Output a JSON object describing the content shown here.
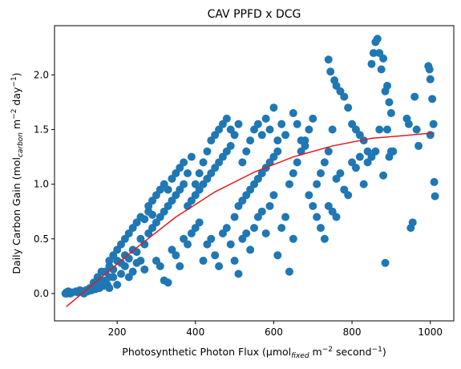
{
  "chart_data": {
    "type": "scatter",
    "title": "CAV PPFD x DCG",
    "xlabel": {
      "pre": "Photosynthetic Photon Flux (µmol",
      "sub": "fixed",
      "mid": " m",
      "sup1": "−2",
      "mid2": " second",
      "sup2": "−1",
      "post": ")"
    },
    "ylabel": {
      "pre": "Daily Carbon Gain (mol",
      "sub": "carbon",
      "mid": " m",
      "sup1": "−2",
      "mid2": " day",
      "sup2": "−1",
      "post": ")"
    },
    "xlim": [
      40,
      1060
    ],
    "ylim": [
      -0.25,
      2.45
    ],
    "xticks": [
      200,
      400,
      600,
      800,
      1000
    ],
    "yticks": [
      0.0,
      0.5,
      1.0,
      1.5,
      2.0
    ],
    "ytick_labels": [
      "0.0",
      "0.5",
      "1.0",
      "1.5",
      "2.0"
    ],
    "grid": false,
    "point_color": "#1f77b4",
    "fit_color": "#e41a1c",
    "fit_line": {
      "x": [
        70,
        150,
        250,
        350,
        450,
        550,
        650,
        750,
        850,
        950,
        1010
      ],
      "y": [
        -0.12,
        0.12,
        0.42,
        0.7,
        0.93,
        1.11,
        1.25,
        1.35,
        1.42,
        1.45,
        1.47
      ]
    },
    "points": [
      [
        68,
        0.0
      ],
      [
        70,
        0.01
      ],
      [
        72,
        0.0
      ],
      [
        75,
        0.02
      ],
      [
        80,
        0.0
      ],
      [
        85,
        0.01
      ],
      [
        95,
        0.02
      ],
      [
        100,
        0.01
      ],
      [
        105,
        0.03
      ],
      [
        110,
        0.02
      ],
      [
        115,
        0.0
      ],
      [
        120,
        0.03
      ],
      [
        125,
        0.02
      ],
      [
        130,
        0.05
      ],
      [
        135,
        0.03
      ],
      [
        140,
        0.06
      ],
      [
        145,
        0.04
      ],
      [
        150,
        0.08
      ],
      [
        155,
        0.05
      ],
      [
        160,
        0.1
      ],
      [
        165,
        0.07
      ],
      [
        170,
        0.12
      ],
      [
        175,
        0.08
      ],
      [
        180,
        0.15
      ],
      [
        140,
        0.1
      ],
      [
        150,
        0.15
      ],
      [
        160,
        0.12
      ],
      [
        170,
        0.2
      ],
      [
        180,
        0.25
      ],
      [
        190,
        0.22
      ],
      [
        200,
        0.3
      ],
      [
        210,
        0.28
      ],
      [
        220,
        0.35
      ],
      [
        230,
        0.32
      ],
      [
        240,
        0.4
      ],
      [
        250,
        0.38
      ],
      [
        180,
        0.3
      ],
      [
        190,
        0.35
      ],
      [
        200,
        0.4
      ],
      [
        210,
        0.45
      ],
      [
        220,
        0.5
      ],
      [
        230,
        0.55
      ],
      [
        240,
        0.6
      ],
      [
        250,
        0.65
      ],
      [
        260,
        0.7
      ],
      [
        270,
        0.68
      ],
      [
        280,
        0.75
      ],
      [
        290,
        0.72
      ],
      [
        160,
        0.2
      ],
      [
        170,
        0.1
      ],
      [
        180,
        0.05
      ],
      [
        190,
        0.15
      ],
      [
        200,
        0.08
      ],
      [
        210,
        0.18
      ],
      [
        220,
        0.25
      ],
      [
        230,
        0.15
      ],
      [
        240,
        0.2
      ],
      [
        250,
        0.28
      ],
      [
        260,
        0.3
      ],
      [
        270,
        0.22
      ],
      [
        260,
        0.5
      ],
      [
        270,
        0.45
      ],
      [
        280,
        0.55
      ],
      [
        290,
        0.6
      ],
      [
        300,
        0.65
      ],
      [
        310,
        0.7
      ],
      [
        320,
        0.75
      ],
      [
        330,
        0.8
      ],
      [
        340,
        0.85
      ],
      [
        350,
        0.9
      ],
      [
        360,
        0.95
      ],
      [
        370,
        1.0
      ],
      [
        280,
        0.8
      ],
      [
        290,
        0.85
      ],
      [
        300,
        0.9
      ],
      [
        310,
        0.95
      ],
      [
        320,
        1.0
      ],
      [
        330,
        0.95
      ],
      [
        340,
        1.05
      ],
      [
        350,
        1.1
      ],
      [
        360,
        1.15
      ],
      [
        370,
        1.2
      ],
      [
        380,
        1.1
      ],
      [
        390,
        1.25
      ],
      [
        300,
        0.3
      ],
      [
        310,
        0.25
      ],
      [
        320,
        0.12
      ],
      [
        330,
        0.1
      ],
      [
        340,
        0.4
      ],
      [
        350,
        0.35
      ],
      [
        360,
        0.25
      ],
      [
        370,
        0.5
      ],
      [
        380,
        0.45
      ],
      [
        390,
        0.55
      ],
      [
        400,
        0.6
      ],
      [
        410,
        0.65
      ],
      [
        380,
        0.8
      ],
      [
        390,
        0.85
      ],
      [
        400,
        0.9
      ],
      [
        410,
        0.95
      ],
      [
        420,
        1.0
      ],
      [
        430,
        1.05
      ],
      [
        440,
        1.1
      ],
      [
        450,
        1.15
      ],
      [
        460,
        1.2
      ],
      [
        470,
        1.25
      ],
      [
        480,
        1.3
      ],
      [
        490,
        1.35
      ],
      [
        400,
        1.0
      ],
      [
        410,
        1.1
      ],
      [
        420,
        1.2
      ],
      [
        430,
        1.3
      ],
      [
        440,
        1.4
      ],
      [
        450,
        1.45
      ],
      [
        460,
        1.5
      ],
      [
        470,
        1.55
      ],
      [
        480,
        1.6
      ],
      [
        490,
        1.5
      ],
      [
        500,
        1.45
      ],
      [
        510,
        1.55
      ],
      [
        420,
        0.3
      ],
      [
        430,
        0.45
      ],
      [
        440,
        0.5
      ],
      [
        450,
        0.35
      ],
      [
        460,
        0.25
      ],
      [
        470,
        0.55
      ],
      [
        480,
        0.6
      ],
      [
        490,
        0.45
      ],
      [
        500,
        0.3
      ],
      [
        510,
        0.18
      ],
      [
        520,
        0.5
      ],
      [
        530,
        0.55
      ],
      [
        500,
        0.7
      ],
      [
        510,
        0.8
      ],
      [
        520,
        0.85
      ],
      [
        530,
        0.9
      ],
      [
        540,
        0.95
      ],
      [
        550,
        1.0
      ],
      [
        560,
        1.05
      ],
      [
        570,
        1.1
      ],
      [
        580,
        1.15
      ],
      [
        590,
        1.2
      ],
      [
        600,
        1.25
      ],
      [
        610,
        1.3
      ],
      [
        520,
        1.2
      ],
      [
        530,
        1.3
      ],
      [
        540,
        1.4
      ],
      [
        550,
        1.5
      ],
      [
        560,
        1.55
      ],
      [
        570,
        1.45
      ],
      [
        580,
        1.6
      ],
      [
        590,
        1.5
      ],
      [
        600,
        1.7
      ],
      [
        610,
        1.4
      ],
      [
        620,
        1.55
      ],
      [
        630,
        1.45
      ],
      [
        540,
        0.4
      ],
      [
        550,
        0.6
      ],
      [
        560,
        0.7
      ],
      [
        570,
        0.75
      ],
      [
        580,
        0.55
      ],
      [
        590,
        0.8
      ],
      [
        600,
        0.9
      ],
      [
        610,
        0.35
      ],
      [
        620,
        0.6
      ],
      [
        630,
        0.7
      ],
      [
        640,
        0.2
      ],
      [
        650,
        0.5
      ],
      [
        640,
        1.0
      ],
      [
        650,
        1.1
      ],
      [
        660,
        1.2
      ],
      [
        670,
        1.3
      ],
      [
        680,
        1.4
      ],
      [
        690,
        1.5
      ],
      [
        700,
        1.6
      ],
      [
        710,
        1.0
      ],
      [
        720,
        1.1
      ],
      [
        730,
        1.2
      ],
      [
        740,
        1.3
      ],
      [
        750,
        1.5
      ],
      [
        650,
        1.65
      ],
      [
        660,
        1.55
      ],
      [
        670,
        1.4
      ],
      [
        680,
        1.35
      ],
      [
        690,
        0.9
      ],
      [
        700,
        0.8
      ],
      [
        710,
        0.7
      ],
      [
        720,
        0.6
      ],
      [
        730,
        0.5
      ],
      [
        740,
        0.8
      ],
      [
        750,
        0.75
      ],
      [
        760,
        0.7
      ],
      [
        740,
        2.14
      ],
      [
        745,
        2.03
      ],
      [
        755,
        1.95
      ],
      [
        760,
        1.9
      ],
      [
        770,
        1.85
      ],
      [
        780,
        1.8
      ],
      [
        790,
        1.7
      ],
      [
        800,
        1.55
      ],
      [
        810,
        1.5
      ],
      [
        820,
        1.45
      ],
      [
        830,
        1.4
      ],
      [
        840,
        1.3
      ],
      [
        760,
        1.05
      ],
      [
        770,
        1.1
      ],
      [
        780,
        0.95
      ],
      [
        790,
        0.9
      ],
      [
        800,
        1.2
      ],
      [
        810,
        1.15
      ],
      [
        820,
        1.25
      ],
      [
        830,
        1.0
      ],
      [
        840,
        1.2
      ],
      [
        850,
        1.25
      ],
      [
        860,
        1.3
      ],
      [
        870,
        1.5
      ],
      [
        850,
        2.1
      ],
      [
        855,
        2.2
      ],
      [
        860,
        2.3
      ],
      [
        865,
        2.33
      ],
      [
        870,
        2.2
      ],
      [
        875,
        2.05
      ],
      [
        880,
        2.15
      ],
      [
        885,
        1.85
      ],
      [
        890,
        1.9
      ],
      [
        895,
        1.75
      ],
      [
        900,
        1.65
      ],
      [
        905,
        1.3
      ],
      [
        880,
        1.08
      ],
      [
        885,
        0.28
      ],
      [
        890,
        1.5
      ],
      [
        895,
        1.25
      ],
      [
        900,
        1.3
      ],
      [
        940,
        1.6
      ],
      [
        945,
        1.55
      ],
      [
        950,
        0.6
      ],
      [
        955,
        0.65
      ],
      [
        960,
        1.8
      ],
      [
        965,
        1.5
      ],
      [
        970,
        1.35
      ],
      [
        995,
        2.08
      ],
      [
        998,
        2.05
      ],
      [
        1000,
        1.96
      ],
      [
        1005,
        1.78
      ],
      [
        1008,
        1.55
      ],
      [
        1010,
        1.02
      ],
      [
        1012,
        0.89
      ],
      [
        1000,
        1.45
      ]
    ]
  }
}
